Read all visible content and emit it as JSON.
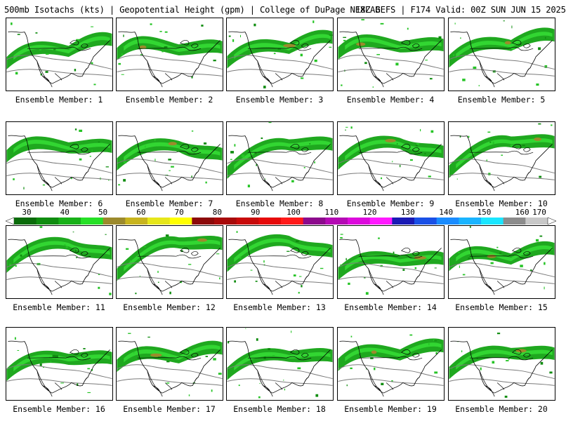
{
  "header": {
    "title_left": "500mb Isotachs (kts) | Geopotential Height (gpm) | College of DuPage NEXLAB",
    "title_right": "18Z GEFS | F174 Valid: 00Z SUN JUN 15 2025"
  },
  "panels": [
    {
      "label": "Ensemble Member: 1"
    },
    {
      "label": "Ensemble Member: 2"
    },
    {
      "label": "Ensemble Member: 3"
    },
    {
      "label": "Ensemble Member: 4"
    },
    {
      "label": "Ensemble Member: 5"
    },
    {
      "label": "Ensemble Member: 6"
    },
    {
      "label": "Ensemble Member: 7"
    },
    {
      "label": "Ensemble Member: 8"
    },
    {
      "label": "Ensemble Member: 9"
    },
    {
      "label": "Ensemble Member: 10"
    },
    {
      "label": "Ensemble Member: 11"
    },
    {
      "label": "Ensemble Member: 12"
    },
    {
      "label": "Ensemble Member: 13"
    },
    {
      "label": "Ensemble Member: 14"
    },
    {
      "label": "Ensemble Member: 15"
    },
    {
      "label": "Ensemble Member: 16"
    },
    {
      "label": "Ensemble Member: 17"
    },
    {
      "label": "Ensemble Member: 18"
    },
    {
      "label": "Ensemble Member: 19"
    },
    {
      "label": "Ensemble Member: 20"
    }
  ],
  "colorbar": {
    "labels": [
      "30",
      "40",
      "50",
      "60",
      "70",
      "80",
      "90",
      "100",
      "110",
      "120",
      "130",
      "140",
      "150",
      "160",
      "170"
    ],
    "colors": [
      "#0a6b0a",
      "#0f8c0f",
      "#18b018",
      "#26e026",
      "#9c8a2c",
      "#c8b41e",
      "#e6e61a",
      "#ffff00",
      "#8c0a0a",
      "#a80a0a",
      "#c80a0a",
      "#e60a0a",
      "#ff1a1a",
      "#8c0a8c",
      "#b40ab4",
      "#dc0adc",
      "#ff1aff",
      "#1a1ab4",
      "#1a50e6",
      "#1a8cff",
      "#1ab4ff",
      "#1ae6ff",
      "#8c8c8c",
      "#c8c8c8"
    ]
  }
}
